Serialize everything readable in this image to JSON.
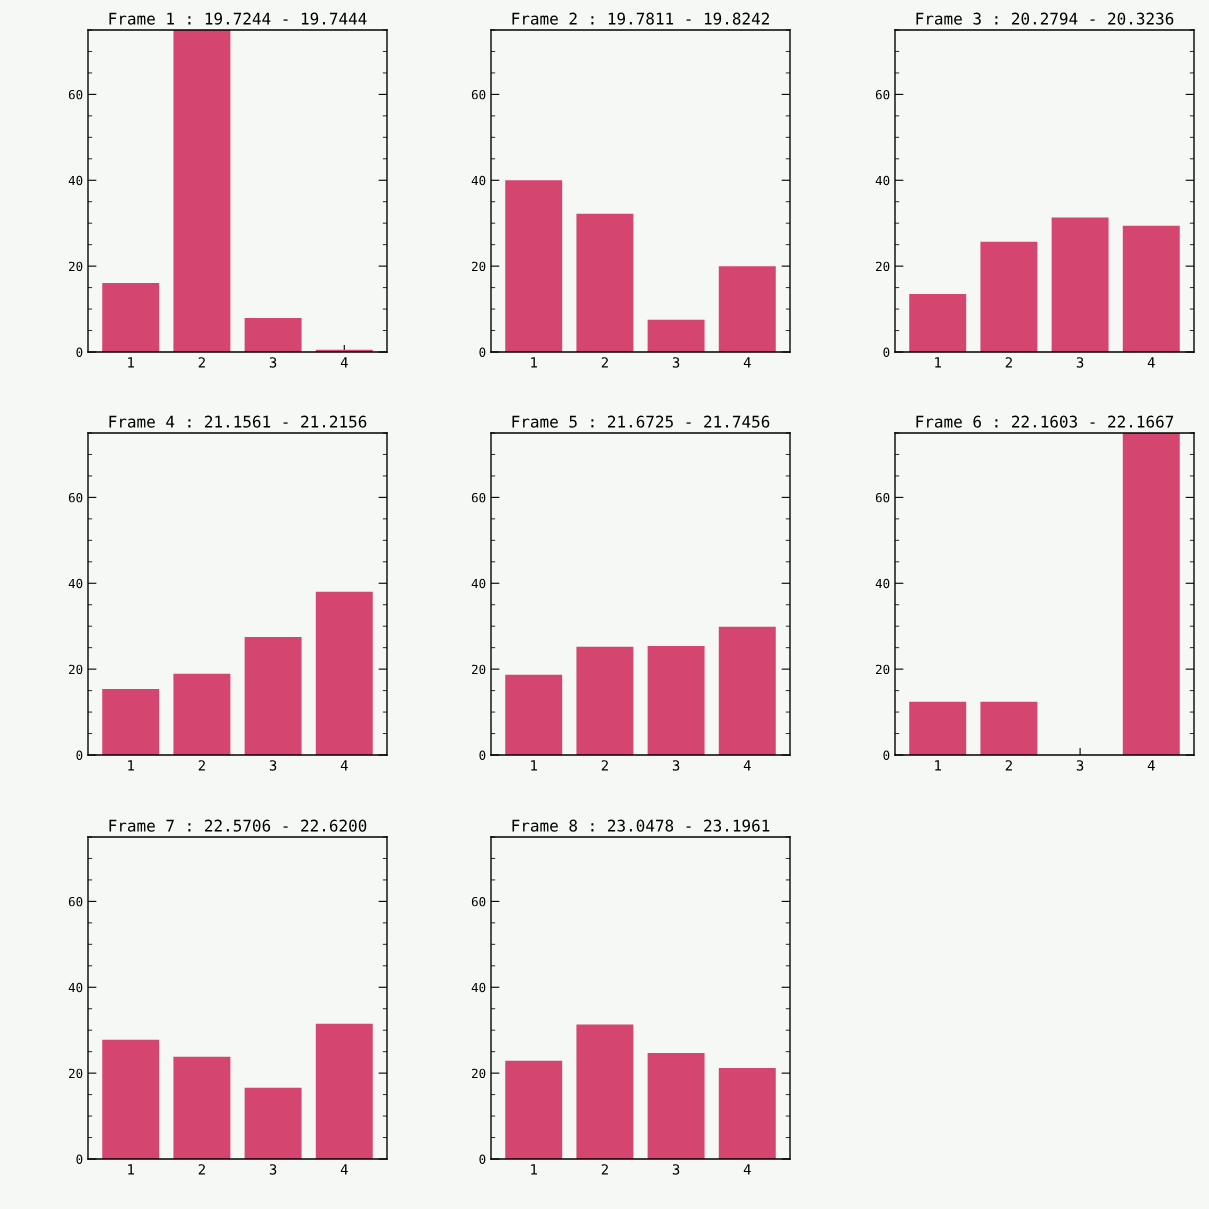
{
  "chart_data": [
    {
      "type": "bar",
      "title": "Frame 1 : 19.7244 - 19.7444",
      "categories": [
        "1",
        "2",
        "3",
        "4"
      ],
      "values": [
        16.1,
        75,
        7.9,
        0.5
      ],
      "color": "#d4466f",
      "ylim": [
        0,
        75
      ],
      "yticks": [
        0,
        20,
        40,
        60
      ],
      "grid": false
    },
    {
      "type": "bar",
      "title": "Frame 2 : 19.7811 - 19.8242",
      "categories": [
        "1",
        "2",
        "3",
        "4"
      ],
      "values": [
        40,
        32.2,
        7.5,
        20
      ],
      "color": "#d4466f",
      "ylim": [
        0,
        75
      ],
      "yticks": [
        0,
        20,
        40,
        60
      ],
      "grid": false
    },
    {
      "type": "bar",
      "title": "Frame 3 : 20.2794 - 20.3236",
      "categories": [
        "1",
        "2",
        "3",
        "4"
      ],
      "values": [
        13.5,
        25.7,
        31.3,
        29.4
      ],
      "color": "#d4466f",
      "ylim": [
        0,
        75
      ],
      "yticks": [
        0,
        20,
        40,
        60
      ],
      "grid": false
    },
    {
      "type": "bar",
      "title": "Frame 4 : 21.1561 - 21.2156",
      "categories": [
        "1",
        "2",
        "3",
        "4"
      ],
      "values": [
        15.4,
        18.9,
        27.5,
        38
      ],
      "color": "#d4466f",
      "ylim": [
        0,
        75
      ],
      "yticks": [
        0,
        20,
        40,
        60
      ],
      "grid": false
    },
    {
      "type": "bar",
      "title": "Frame 5 : 21.6725 - 21.7456",
      "categories": [
        "1",
        "2",
        "3",
        "4"
      ],
      "values": [
        18.7,
        25.2,
        25.4,
        29.9
      ],
      "color": "#d4466f",
      "ylim": [
        0,
        75
      ],
      "yticks": [
        0,
        20,
        40,
        60
      ],
      "grid": false
    },
    {
      "type": "bar",
      "title": "Frame 6 : 22.1603 - 22.1667",
      "categories": [
        "1",
        "2",
        "3",
        "4"
      ],
      "values": [
        12.4,
        12.4,
        0,
        75
      ],
      "color": "#d4466f",
      "ylim": [
        0,
        75
      ],
      "yticks": [
        0,
        20,
        40,
        60
      ],
      "grid": false
    },
    {
      "type": "bar",
      "title": "Frame 7 : 22.5706 - 22.6200",
      "categories": [
        "1",
        "2",
        "3",
        "4"
      ],
      "values": [
        27.8,
        23.8,
        16.6,
        31.5
      ],
      "color": "#d4466f",
      "ylim": [
        0,
        75
      ],
      "yticks": [
        0,
        20,
        40,
        60
      ],
      "grid": false
    },
    {
      "type": "bar",
      "title": "Frame 8 : 23.0478 - 23.1961",
      "categories": [
        "1",
        "2",
        "3",
        "4"
      ],
      "values": [
        22.9,
        31.3,
        24.7,
        21.2
      ],
      "color": "#d4466f",
      "ylim": [
        0,
        75
      ],
      "yticks": [
        0,
        20,
        40,
        60
      ],
      "grid": false
    }
  ]
}
